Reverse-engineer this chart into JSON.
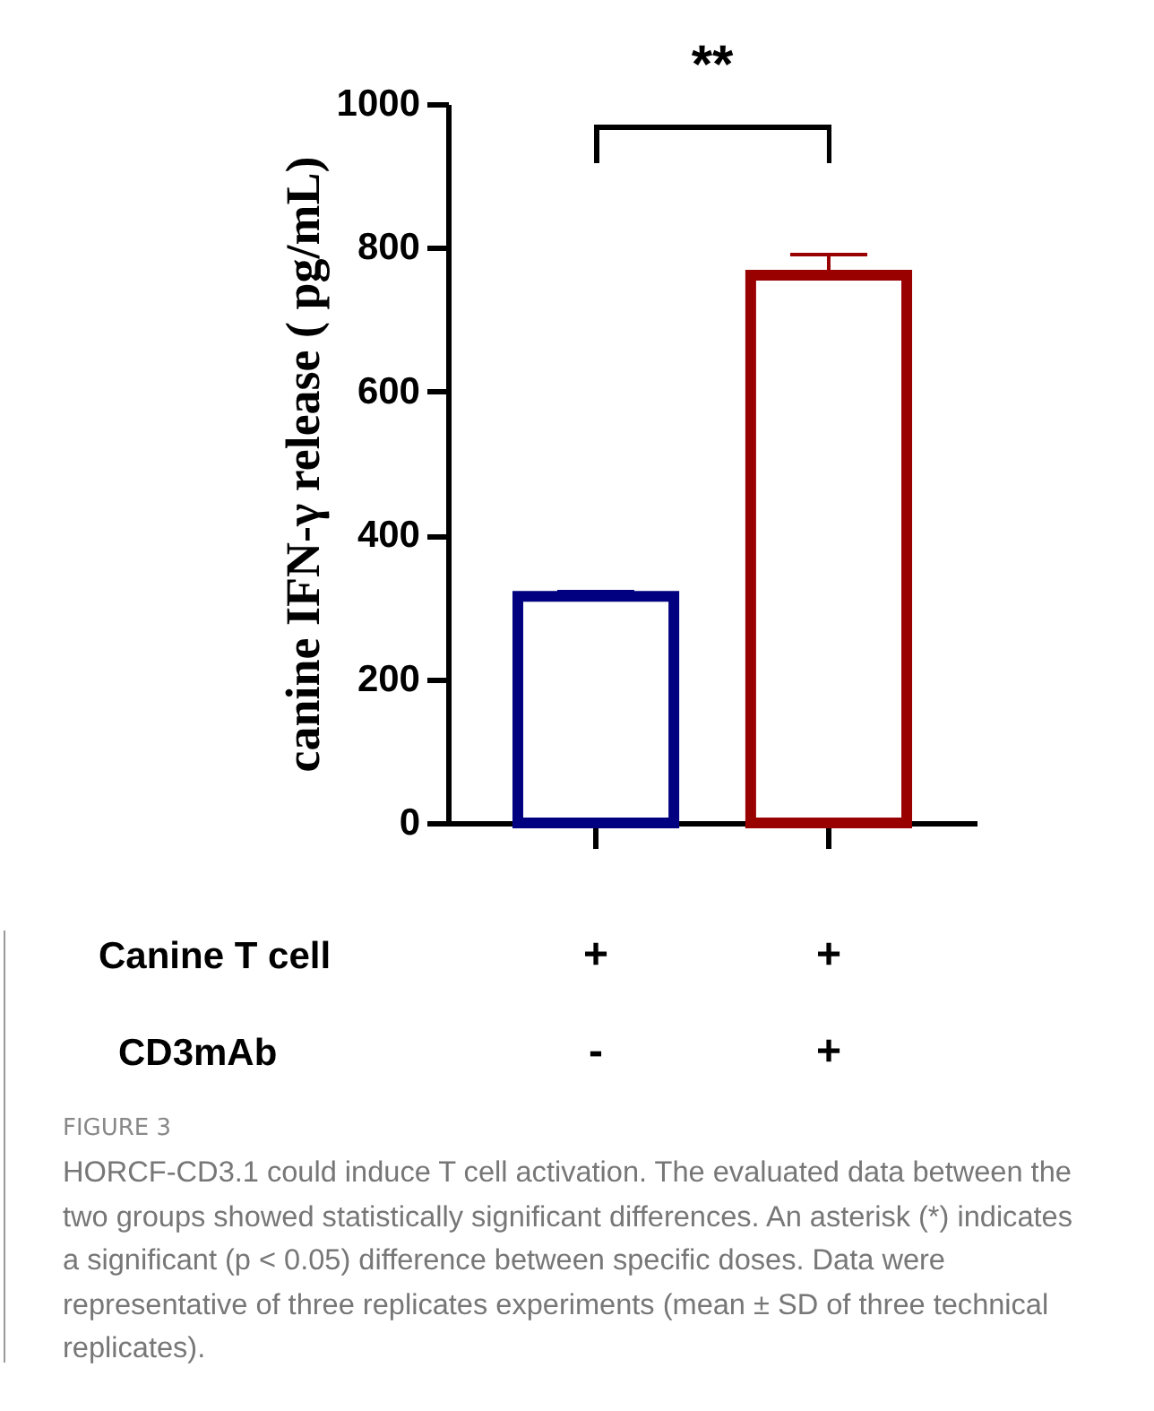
{
  "chart_data": {
    "type": "bar",
    "title": "FIGURE 3",
    "ylabel": "canine IFN-γ release ( pg/mL)",
    "categories": [
      null,
      null
    ],
    "values": [
      315,
      762
    ],
    "colors": [
      "#000080",
      "#990000"
    ],
    "errors": [
      [
        315,
        321
      ],
      [
        762,
        790
      ]
    ],
    "ylim": [
      0,
      1000
    ],
    "yticks": [
      0,
      200,
      400,
      600,
      800,
      1000
    ],
    "tick_labels": "y",
    "annotations": [
      "**",
      "Canine T cell",
      "+",
      "+",
      "CD3mAb",
      "-",
      "+",
      "HORCF-CD3.1 could induce T cell activation. The evaluated data between the two groups showed statistically significant differences. An asterisk (*) indicates a significant (p < 0.05) difference between specific doses. Data were representative of three replicates experiments (mean ± SD of three technical replicates)."
    ]
  }
}
